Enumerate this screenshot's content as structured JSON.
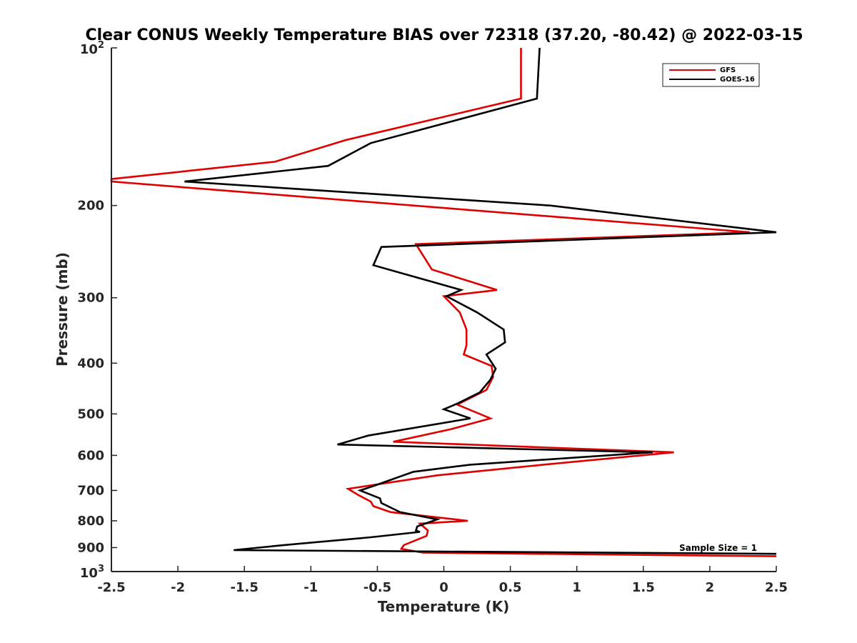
{
  "chart_data": {
    "type": "line",
    "title": "Clear CONUS Weekly Temperature BIAS over 72318 (37.20, -80.42) @ 2022-03-15",
    "xlabel": "Temperature (K)",
    "ylabel": "Pressure (mb)",
    "xlim": [
      -2.5,
      2.5
    ],
    "ylim": [
      100,
      1000
    ],
    "y_scale": "log",
    "y_reversed": true,
    "grid": false,
    "legend_position": "top-right",
    "x_ticks": [
      {
        "value": -2.5,
        "label": "-2.5"
      },
      {
        "value": -2,
        "label": "-2"
      },
      {
        "value": -1.5,
        "label": "-1.5"
      },
      {
        "value": -1,
        "label": "-1"
      },
      {
        "value": -0.5,
        "label": "-0.5"
      },
      {
        "value": 0,
        "label": "0"
      },
      {
        "value": 0.5,
        "label": "0.5"
      },
      {
        "value": 1,
        "label": "1"
      },
      {
        "value": 1.5,
        "label": "1.5"
      },
      {
        "value": 2,
        "label": "2"
      },
      {
        "value": 2.5,
        "label": "2.5"
      }
    ],
    "y_ticks": [
      {
        "value": 200,
        "label": "200"
      },
      {
        "value": 300,
        "label": "300"
      },
      {
        "value": 400,
        "label": "400"
      },
      {
        "value": 500,
        "label": "500"
      },
      {
        "value": 600,
        "label": "600"
      },
      {
        "value": 700,
        "label": "700"
      },
      {
        "value": 800,
        "label": "800"
      },
      {
        "value": 900,
        "label": "900"
      }
    ],
    "y_ticks_power": [
      {
        "value": 100,
        "base": "10",
        "exponent": "2"
      },
      {
        "value": 1000,
        "base": "10",
        "exponent": "3"
      }
    ],
    "annotation": "Sample Size = 1",
    "series": [
      {
        "name": "GFS",
        "color": "#e00000",
        "points": [
          [
            0.58,
            100
          ],
          [
            0.58,
            125
          ],
          [
            -0.74,
            150
          ],
          [
            -1.27,
            165
          ],
          [
            -2.5,
            178
          ],
          [
            -2.5,
            180
          ],
          [
            2.3,
            225
          ],
          [
            -0.21,
            237
          ],
          [
            -0.09,
            265
          ],
          [
            0.4,
            290
          ],
          [
            0.0,
            298
          ],
          [
            0.12,
            320
          ],
          [
            0.17,
            345
          ],
          [
            0.17,
            370
          ],
          [
            0.15,
            385
          ],
          [
            0.36,
            405
          ],
          [
            0.37,
            425
          ],
          [
            0.32,
            450
          ],
          [
            0.1,
            480
          ],
          [
            0.35,
            510
          ],
          [
            0.05,
            535
          ],
          [
            -0.38,
            565
          ],
          [
            1.73,
            592
          ],
          [
            0.75,
            625
          ],
          [
            -0.05,
            655
          ],
          [
            -0.72,
            695
          ],
          [
            -0.64,
            715
          ],
          [
            -0.55,
            735
          ],
          [
            -0.53,
            750
          ],
          [
            -0.4,
            770
          ],
          [
            0.18,
            800
          ],
          [
            -0.18,
            810
          ],
          [
            -0.12,
            835
          ],
          [
            -0.13,
            855
          ],
          [
            -0.3,
            890
          ],
          [
            -0.32,
            905
          ],
          [
            -0.16,
            920
          ],
          [
            2.5,
            935
          ]
        ]
      },
      {
        "name": "GOES-16",
        "color": "#000000",
        "points": [
          [
            0.72,
            100
          ],
          [
            0.7,
            125
          ],
          [
            -0.55,
            152
          ],
          [
            -0.87,
            168
          ],
          [
            -1.95,
            180
          ],
          [
            0.8,
            200
          ],
          [
            2.5,
            225
          ],
          [
            -0.47,
            240
          ],
          [
            -0.53,
            260
          ],
          [
            0.13,
            290
          ],
          [
            0.02,
            298
          ],
          [
            0.25,
            320
          ],
          [
            0.45,
            345
          ],
          [
            0.46,
            365
          ],
          [
            0.32,
            385
          ],
          [
            0.39,
            410
          ],
          [
            0.35,
            430
          ],
          [
            0.27,
            455
          ],
          [
            0.1,
            478
          ],
          [
            0.0,
            490
          ],
          [
            0.2,
            510
          ],
          [
            -0.57,
            550
          ],
          [
            -0.8,
            572
          ],
          [
            1.57,
            592
          ],
          [
            0.2,
            625
          ],
          [
            -0.23,
            645
          ],
          [
            -0.52,
            685
          ],
          [
            -0.63,
            700
          ],
          [
            -0.48,
            725
          ],
          [
            -0.47,
            740
          ],
          [
            -0.33,
            770
          ],
          [
            -0.05,
            795
          ],
          [
            -0.2,
            820
          ],
          [
            -0.21,
            835
          ],
          [
            -0.18,
            840
          ],
          [
            -0.55,
            860
          ],
          [
            -1.2,
            890
          ],
          [
            -1.58,
            910
          ],
          [
            2.5,
            925
          ]
        ]
      }
    ]
  }
}
